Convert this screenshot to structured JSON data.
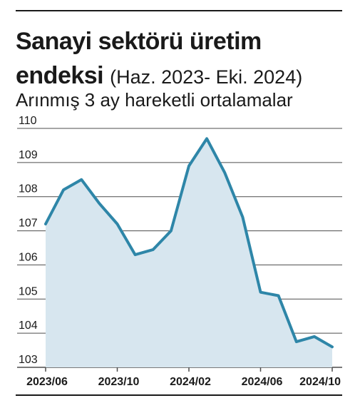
{
  "header": {
    "title_main": "Sanayi sektörü üretim endeksi",
    "title_range": "(Haz. 2023- Eki. 2024)",
    "subtitle": "Arınmış 3 ay hareketli ortalamalar"
  },
  "colors": {
    "line": "#2e86a8",
    "fill": "#d7e6ef",
    "grid": "#4d4d4d"
  },
  "chart_data": {
    "type": "area",
    "title": "Sanayi sektörü üretim endeksi",
    "subtitle": "Arınmış 3 ay hareketli ortalamalar",
    "xlabel": "",
    "ylabel": "",
    "ylim": [
      103,
      110
    ],
    "yticks": [
      103,
      104,
      105,
      106,
      107,
      108,
      109,
      110
    ],
    "grid": true,
    "x": [
      "2023/06",
      "2023/07",
      "2023/08",
      "2023/09",
      "2023/10",
      "2023/11",
      "2023/12",
      "2024/01",
      "2024/02",
      "2024/03",
      "2024/04",
      "2024/05",
      "2024/06",
      "2024/07",
      "2024/08",
      "2024/09",
      "2024/10"
    ],
    "xtick_labels": [
      "2023/06",
      "2023/10",
      "2024/02",
      "2024/06",
      "2024/10"
    ],
    "series": [
      {
        "values": [
          107.2,
          108.2,
          108.5,
          107.8,
          107.2,
          106.3,
          106.45,
          107.0,
          108.9,
          109.7,
          108.7,
          107.4,
          105.2,
          105.1,
          103.75,
          103.9,
          103.6
        ]
      }
    ]
  }
}
